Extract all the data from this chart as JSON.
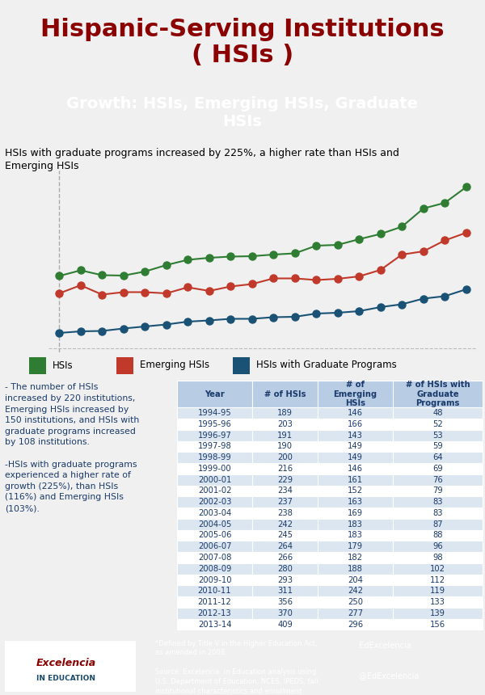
{
  "title_main": "Hispanic-Serving Institutions\n( HSIs )",
  "title_sub": "Growth: HSIs, Emerging HSIs, Graduate\nHSIs",
  "chart_note": "HSIs with graduate programs increased by 225%, a higher rate than HSIs and\nEmerging HSIs",
  "years": [
    "1994-95",
    "1995-96",
    "1996-97",
    "1997-98",
    "1998-99",
    "1999-00",
    "2000-01",
    "2001-02",
    "2002-03",
    "2003-04",
    "2004-05",
    "2005-06",
    "2006-07",
    "2007-08",
    "2008-09",
    "2009-10",
    "2010-11",
    "2011-12",
    "2012-13",
    "2013-14"
  ],
  "hsis": [
    189,
    203,
    191,
    190,
    200,
    216,
    229,
    234,
    237,
    238,
    242,
    245,
    264,
    266,
    280,
    293,
    311,
    356,
    370,
    409
  ],
  "emerging": [
    146,
    166,
    143,
    149,
    149,
    146,
    161,
    152,
    163,
    169,
    183,
    183,
    179,
    182,
    188,
    204,
    242,
    250,
    277,
    296
  ],
  "graduate": [
    48,
    52,
    53,
    59,
    64,
    69,
    76,
    79,
    83,
    83,
    87,
    88,
    96,
    98,
    102,
    112,
    119,
    133,
    139,
    156
  ],
  "color_hsi": "#2e7d32",
  "color_emerging": "#c0392b",
  "color_graduate": "#1a5276",
  "bg_main": "#f0f0f0",
  "bg_title_main": "#eeeeee",
  "bg_title_sub": "#1a5276",
  "bg_table_header": "#b8cce4",
  "bg_table_alt": "#dce6f1",
  "bg_table_white": "#ffffff",
  "bg_footer": "#1a4a6b",
  "text_title_main": "#8b0000",
  "text_title_sub": "#ffffff",
  "left_note": "- The number of HSIs\nincreased by 220 institutions,\nEmerging HSIs increased by\n150 institutions, and HSIs with\ngraduate programs increased\nby 108 institutions.\n\n-HSIs with graduate programs\nexperienced a higher rate of\ngrowth (225%), than HSIs\n(116%) and Emerging HSIs\n(103%).",
  "footer_note1": "*Defined by Title V in the Higher Education Act,\nas amended in 2008.\n\nSource: Excelencia  in Education analysis using\nU.S. Department of Education, NCES, IPEDS, fall\ninstitutional characteristics and enrollment\nsurveys.",
  "footer_social": "  EdExcelencia\n\n  @EdExcelencia\n\n  www.EdExcelencia.org",
  "table_headers": [
    "Year",
    "# of HSIs",
    "# of\nEmerging\nHSIs",
    "# of HSIs with\nGraduate\nPrograms"
  ]
}
